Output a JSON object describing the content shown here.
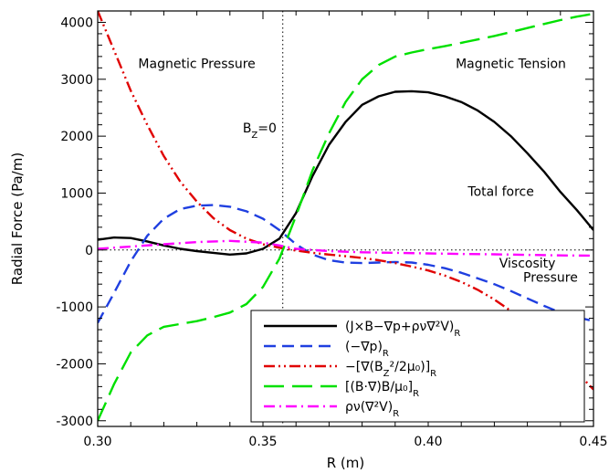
{
  "chart_data": {
    "type": "line",
    "title": "",
    "xlabel": "R (m)",
    "ylabel": "Radial Force (Pa/m)",
    "xlim": [
      0.3,
      0.45
    ],
    "ylim": [
      -3100,
      4200
    ],
    "xticks": [
      0.3,
      0.35,
      0.4,
      0.45
    ],
    "xtick_labels": [
      "0.30",
      "0.35",
      "0.40",
      "0.45"
    ],
    "yticks": [
      -3000,
      -2000,
      -1000,
      0,
      1000,
      2000,
      3000,
      4000
    ],
    "ytick_labels": [
      "-3000",
      "-2000",
      "-1000",
      "0",
      "1000",
      "2000",
      "3000",
      "4000"
    ],
    "grid": false,
    "legend": "lower-center",
    "reference_lines": [
      {
        "orientation": "vertical",
        "value": 0.356,
        "style": "dotted",
        "label": "B_Z=0"
      },
      {
        "orientation": "horizontal",
        "value": 0,
        "style": "dotted"
      }
    ],
    "annotations": [
      {
        "text": "Magnetic Pressure",
        "x": 0.33,
        "y": 3280
      },
      {
        "text": "Magnetic Tension",
        "x": 0.425,
        "y": 3280
      },
      {
        "text": "B_Z=0",
        "x": 0.349,
        "y": 2150
      },
      {
        "text": "Total force",
        "x": 0.422,
        "y": 1030
      },
      {
        "text": "Viscosity",
        "x": 0.43,
        "y": -230
      },
      {
        "text": "Pressure",
        "x": 0.437,
        "y": -480
      }
    ],
    "series": [
      {
        "key": "total",
        "name": "(J×B−∇p+ρν∇²V)_R",
        "color": "#000000",
        "dash": "solid",
        "points": [
          [
            0.3,
            180
          ],
          [
            0.305,
            220
          ],
          [
            0.31,
            210
          ],
          [
            0.315,
            150
          ],
          [
            0.32,
            80
          ],
          [
            0.325,
            20
          ],
          [
            0.33,
            -20
          ],
          [
            0.335,
            -50
          ],
          [
            0.34,
            -80
          ],
          [
            0.345,
            -60
          ],
          [
            0.35,
            20
          ],
          [
            0.355,
            200
          ],
          [
            0.36,
            650
          ],
          [
            0.365,
            1300
          ],
          [
            0.37,
            1850
          ],
          [
            0.375,
            2250
          ],
          [
            0.38,
            2550
          ],
          [
            0.385,
            2700
          ],
          [
            0.39,
            2780
          ],
          [
            0.395,
            2790
          ],
          [
            0.4,
            2770
          ],
          [
            0.405,
            2700
          ],
          [
            0.41,
            2600
          ],
          [
            0.415,
            2450
          ],
          [
            0.42,
            2250
          ],
          [
            0.425,
            2000
          ],
          [
            0.43,
            1700
          ],
          [
            0.435,
            1380
          ],
          [
            0.44,
            1020
          ],
          [
            0.445,
            700
          ],
          [
            0.45,
            350
          ]
        ]
      },
      {
        "key": "pressure",
        "name": "(−∇p)_R",
        "color": "#1f3fe0",
        "dash": "dashed",
        "points": [
          [
            0.3,
            -1280
          ],
          [
            0.305,
            -750
          ],
          [
            0.31,
            -200
          ],
          [
            0.315,
            250
          ],
          [
            0.32,
            550
          ],
          [
            0.325,
            720
          ],
          [
            0.33,
            780
          ],
          [
            0.335,
            790
          ],
          [
            0.34,
            760
          ],
          [
            0.345,
            680
          ],
          [
            0.35,
            550
          ],
          [
            0.355,
            350
          ],
          [
            0.36,
            100
          ],
          [
            0.365,
            -80
          ],
          [
            0.37,
            -180
          ],
          [
            0.375,
            -220
          ],
          [
            0.38,
            -230
          ],
          [
            0.385,
            -220
          ],
          [
            0.39,
            -210
          ],
          [
            0.395,
            -220
          ],
          [
            0.4,
            -260
          ],
          [
            0.405,
            -320
          ],
          [
            0.41,
            -400
          ],
          [
            0.415,
            -500
          ],
          [
            0.42,
            -600
          ],
          [
            0.425,
            -720
          ],
          [
            0.43,
            -850
          ],
          [
            0.435,
            -980
          ],
          [
            0.44,
            -1100
          ],
          [
            0.445,
            -1180
          ],
          [
            0.45,
            -1250
          ]
        ]
      },
      {
        "key": "mag_pressure",
        "name": "−[∇(B_Z²/2μ₀)]_R",
        "color": "#e00000",
        "dash": "dash-dot-dot",
        "points": [
          [
            0.3,
            4200
          ],
          [
            0.305,
            3500
          ],
          [
            0.31,
            2800
          ],
          [
            0.315,
            2200
          ],
          [
            0.32,
            1650
          ],
          [
            0.325,
            1200
          ],
          [
            0.33,
            850
          ],
          [
            0.335,
            560
          ],
          [
            0.34,
            350
          ],
          [
            0.345,
            200
          ],
          [
            0.35,
            100
          ],
          [
            0.355,
            40
          ],
          [
            0.36,
            -10
          ],
          [
            0.365,
            -50
          ],
          [
            0.37,
            -80
          ],
          [
            0.375,
            -110
          ],
          [
            0.38,
            -140
          ],
          [
            0.385,
            -180
          ],
          [
            0.39,
            -230
          ],
          [
            0.395,
            -290
          ],
          [
            0.4,
            -360
          ],
          [
            0.405,
            -450
          ],
          [
            0.41,
            -560
          ],
          [
            0.415,
            -700
          ],
          [
            0.42,
            -870
          ],
          [
            0.425,
            -1070
          ],
          [
            0.43,
            -1300
          ],
          [
            0.435,
            -1560
          ],
          [
            0.44,
            -1850
          ],
          [
            0.445,
            -2150
          ],
          [
            0.45,
            -2450
          ]
        ]
      },
      {
        "key": "mag_tension",
        "name": "[(B·∇)B/μ₀]_R",
        "color": "#00e000",
        "dash": "long-dash",
        "points": [
          [
            0.3,
            -3000
          ],
          [
            0.305,
            -2350
          ],
          [
            0.31,
            -1800
          ],
          [
            0.315,
            -1500
          ],
          [
            0.32,
            -1350
          ],
          [
            0.325,
            -1300
          ],
          [
            0.33,
            -1250
          ],
          [
            0.335,
            -1180
          ],
          [
            0.34,
            -1100
          ],
          [
            0.345,
            -950
          ],
          [
            0.35,
            -650
          ],
          [
            0.355,
            -150
          ],
          [
            0.36,
            600
          ],
          [
            0.365,
            1400
          ],
          [
            0.37,
            2050
          ],
          [
            0.375,
            2600
          ],
          [
            0.38,
            3000
          ],
          [
            0.385,
            3250
          ],
          [
            0.39,
            3400
          ],
          [
            0.395,
            3470
          ],
          [
            0.4,
            3530
          ],
          [
            0.405,
            3580
          ],
          [
            0.41,
            3640
          ],
          [
            0.415,
            3700
          ],
          [
            0.42,
            3760
          ],
          [
            0.425,
            3830
          ],
          [
            0.43,
            3900
          ],
          [
            0.435,
            3970
          ],
          [
            0.44,
            4040
          ],
          [
            0.445,
            4100
          ],
          [
            0.45,
            4150
          ]
        ]
      },
      {
        "key": "viscosity",
        "name": "ρν(∇²V)_R",
        "color": "#ff00ff",
        "dash": "dash-dot",
        "points": [
          [
            0.3,
            20
          ],
          [
            0.31,
            60
          ],
          [
            0.32,
            100
          ],
          [
            0.33,
            140
          ],
          [
            0.34,
            160
          ],
          [
            0.35,
            130
          ],
          [
            0.355,
            80
          ],
          [
            0.36,
            20
          ],
          [
            0.37,
            -20
          ],
          [
            0.38,
            -40
          ],
          [
            0.39,
            -50
          ],
          [
            0.4,
            -60
          ],
          [
            0.41,
            -70
          ],
          [
            0.42,
            -75
          ],
          [
            0.43,
            -85
          ],
          [
            0.44,
            -95
          ],
          [
            0.45,
            -100
          ]
        ]
      }
    ]
  }
}
